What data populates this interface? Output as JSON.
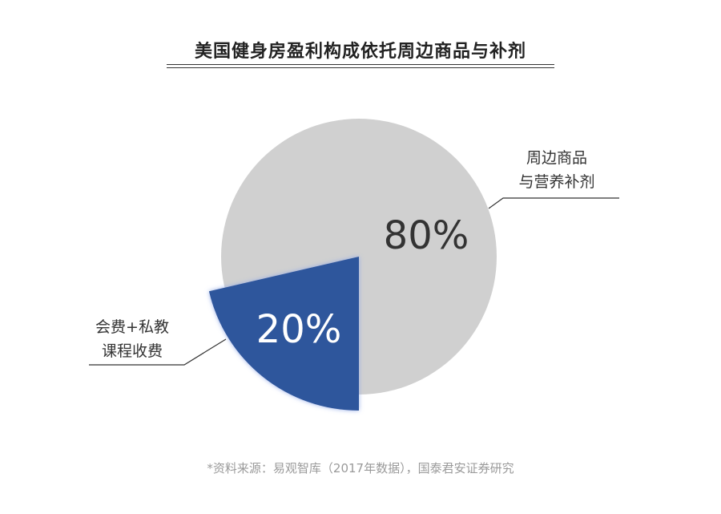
{
  "chart_data": {
    "type": "pie",
    "title": "美国健身房盈利构成依托周边商品与补剂",
    "slices": [
      {
        "label_lines": [
          "周边商品",
          "与营养补剂"
        ],
        "value": 80,
        "data_label": "80%",
        "color": "#d0d0d0"
      },
      {
        "label_lines": [
          "会费+私教",
          "课程收费"
        ],
        "value": 20,
        "data_label": "20%",
        "color": "#2f569c",
        "exploded": true
      }
    ],
    "footnote": "*资料来源：易观智库（2017年数据），国泰君安证券研究"
  }
}
